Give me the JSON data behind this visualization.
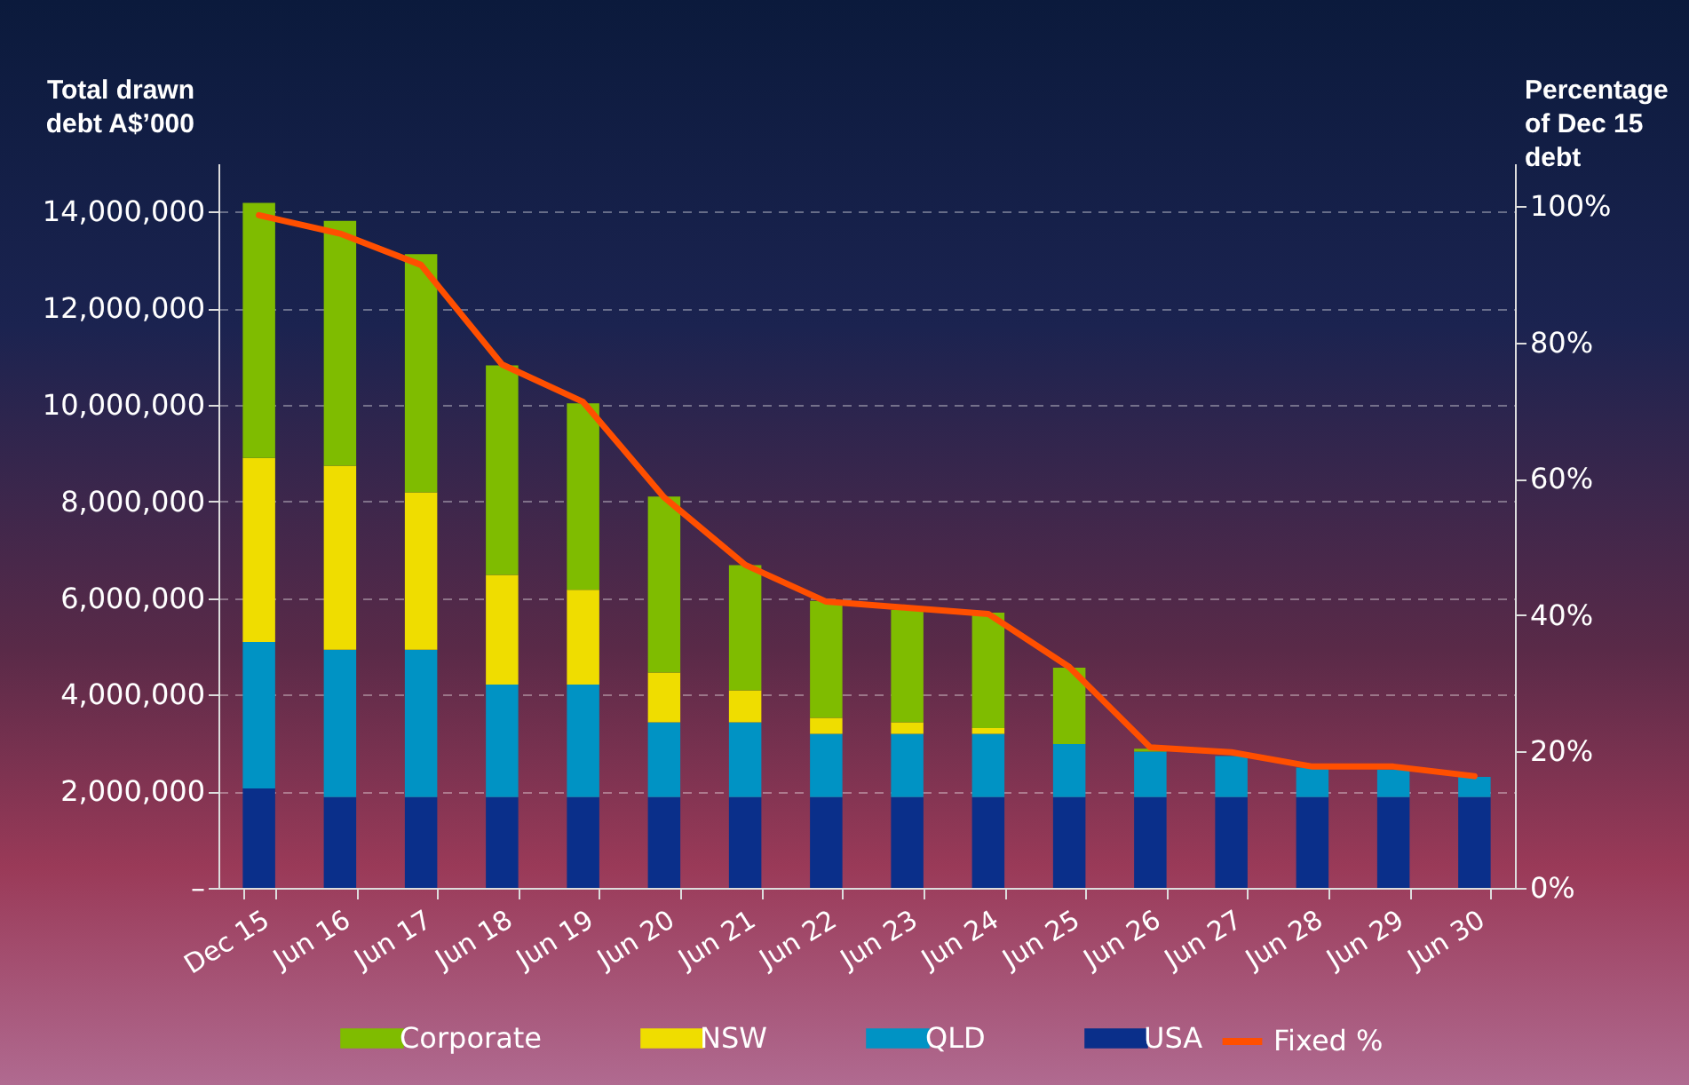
{
  "chart_data": {
    "type": "bar",
    "stacked": true,
    "ylabel": "Total drawn debt A$’000",
    "y2label": "Percentage of Dec 15 debt",
    "categories": [
      "Dec 15",
      "Jun 16",
      "Jun 17",
      "Jun 18",
      "Jun 19",
      "Jun 20",
      "Jun 21",
      "Jun 22",
      "Jun 23",
      "Jun 24",
      "Jun 25",
      "Jun 26",
      "Jun 27",
      "Jun 28",
      "Jun 29",
      "Jun 30"
    ],
    "series": [
      {
        "name": "USA",
        "color": "#0a2f8a",
        "values": [
          2060000,
          1880000,
          1880000,
          1880000,
          1880000,
          1880000,
          1880000,
          1880000,
          1880000,
          1880000,
          1880000,
          1880000,
          1880000,
          1880000,
          1880000,
          1880000
        ]
      },
      {
        "name": "QLD",
        "color": "#0093c4",
        "values": [
          3030000,
          3050000,
          3050000,
          2330000,
          2330000,
          1550000,
          1550000,
          1310000,
          1310000,
          1310000,
          1100000,
          940000,
          850000,
          610000,
          570000,
          420000
        ]
      },
      {
        "name": "NSW",
        "color": "#efdd00",
        "values": [
          3810000,
          3810000,
          3260000,
          2270000,
          1960000,
          1030000,
          660000,
          330000,
          240000,
          120000,
          0,
          0,
          0,
          0,
          0,
          0
        ]
      },
      {
        "name": "Corporate",
        "color": "#7fbc00",
        "values": [
          5280000,
          5070000,
          4930000,
          4340000,
          3860000,
          3640000,
          2590000,
          2420000,
          2330000,
          2390000,
          1580000,
          60000,
          0,
          0,
          0,
          0
        ]
      },
      {
        "name": "Fixed %",
        "type": "line",
        "axis": "y2",
        "color": "#ff4f00",
        "values": [
          98.7,
          96.0,
          91.4,
          76.8,
          71.3,
          57.3,
          47.4,
          42.0,
          41.1,
          40.2,
          32.4,
          20.6,
          19.9,
          17.8,
          17.8,
          16.4
        ]
      }
    ],
    "ylim": [
      0,
      15000000
    ],
    "yticks": [
      {
        "value": 0,
        "label": "–"
      },
      {
        "value": 2000000,
        "label": "2,000,000"
      },
      {
        "value": 4000000,
        "label": "4,000,000"
      },
      {
        "value": 6000000,
        "label": "6,000,000"
      },
      {
        "value": 8000000,
        "label": "8,000,000"
      },
      {
        "value": 10000000,
        "label": "10,000,000"
      },
      {
        "value": 12000000,
        "label": "12,000,000"
      },
      {
        "value": 14000000,
        "label": "14,000,000"
      }
    ],
    "y2lim": [
      0,
      106.3
    ],
    "y2ticks": [
      {
        "value": 0,
        "label": "0%"
      },
      {
        "value": 20,
        "label": "20%"
      },
      {
        "value": 40,
        "label": "40%"
      },
      {
        "value": 60,
        "label": "60%"
      },
      {
        "value": 80,
        "label": "80%"
      },
      {
        "value": 100,
        "label": "100%"
      }
    ],
    "grid": "y",
    "legend": "bottom",
    "marker": "none"
  }
}
